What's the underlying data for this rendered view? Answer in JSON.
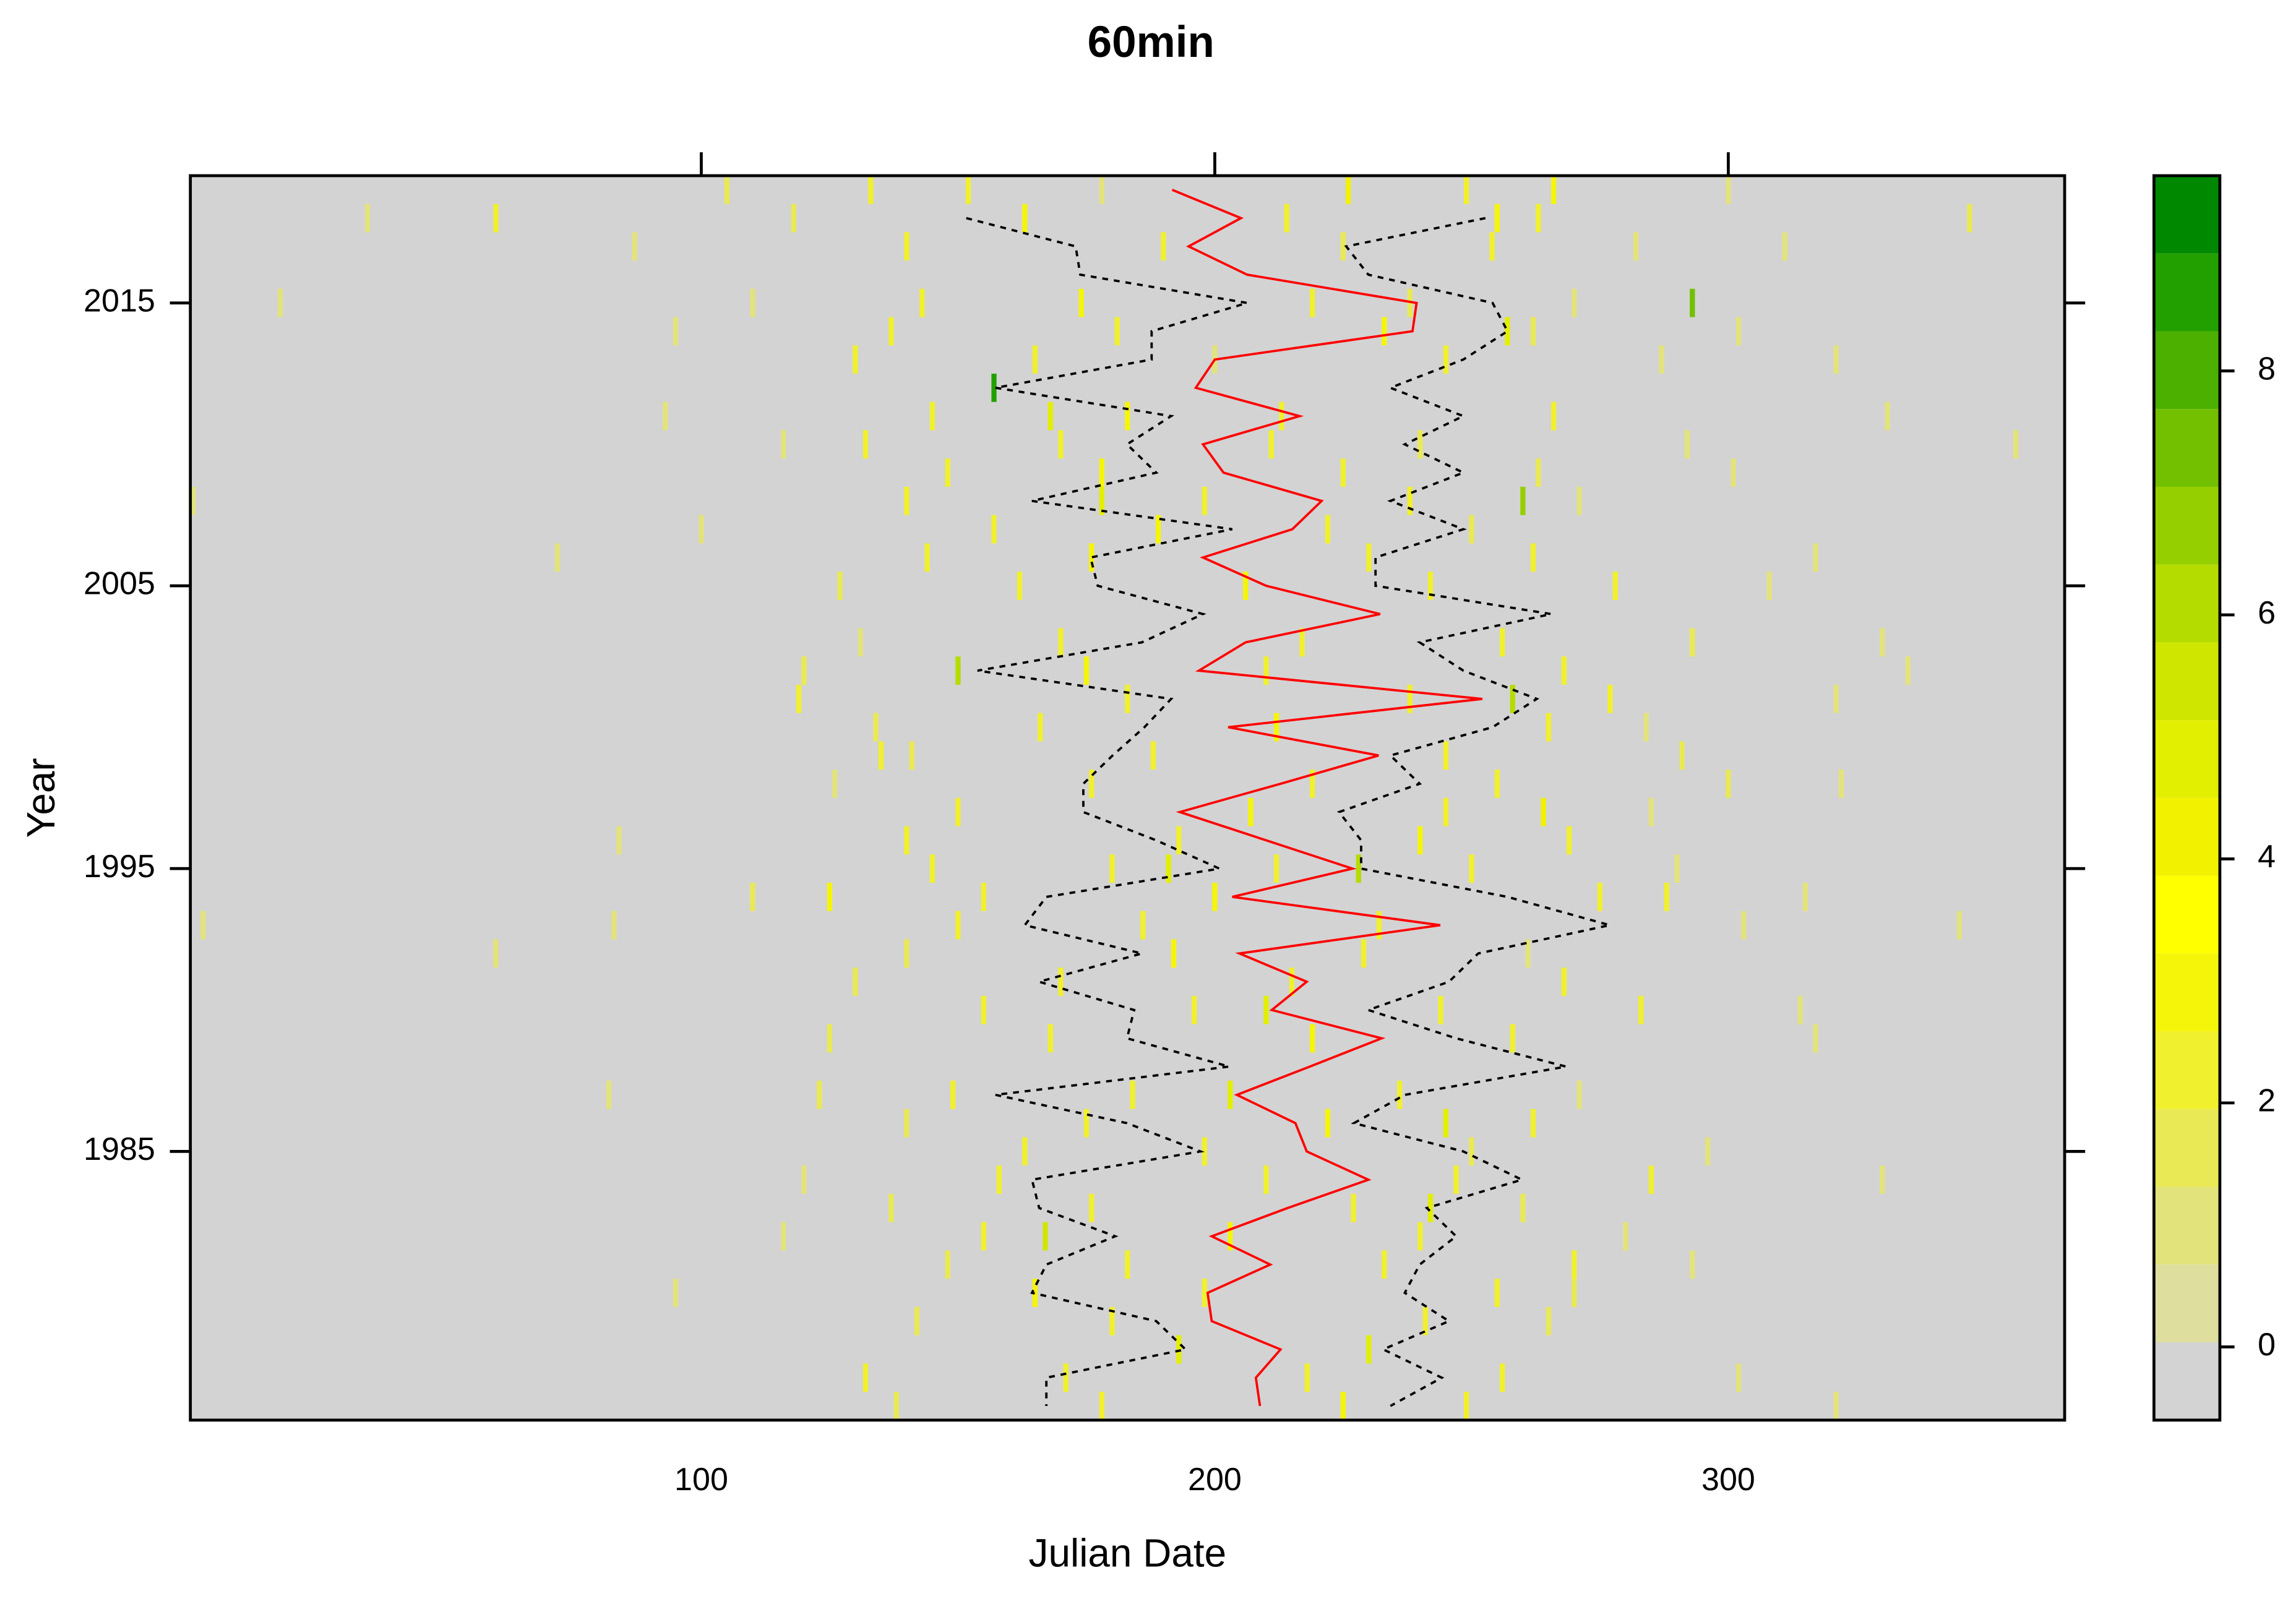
{
  "chart_data": {
    "type": "levelplot",
    "title": "60min",
    "x_label": "Julian Date",
    "y_label": "Year",
    "xlim": [
      0.5,
      365.5
    ],
    "ylim": [
      1975.5,
      2019.5
    ],
    "xticks": [
      100,
      200,
      300
    ],
    "yticks": [
      1985,
      1995,
      2005,
      2015
    ],
    "background": "#d3d3d3",
    "zlim": [
      -0.6,
      9.6
    ],
    "zticks": [
      0,
      2,
      4,
      6,
      8
    ],
    "colors": [
      "#d3d3d3",
      "#dede9f",
      "#e3e37c",
      "#e9e955",
      "#f0f02e",
      "#f5f50a",
      "#ffff00",
      "#f2f200",
      "#e3ef00",
      "#cfe600",
      "#b5dc00",
      "#96cf00",
      "#72c000",
      "#4cb000",
      "#22a000",
      "#008800"
    ],
    "cells": [
      [
        157,
        2012,
        8.5
      ],
      [
        293,
        2015,
        7.5
      ],
      [
        260,
        2008,
        7
      ],
      [
        150,
        2002,
        6
      ],
      [
        258,
        2001,
        6
      ],
      [
        228,
        1995,
        6
      ],
      [
        168,
        2011,
        5
      ],
      [
        191,
        1995,
        5
      ],
      [
        167,
        1982,
        5.5
      ],
      [
        242,
        1983,
        5
      ],
      [
        245,
        1986,
        5
      ],
      [
        203,
        1987,
        5
      ],
      [
        230,
        1978,
        5
      ],
      [
        193,
        1978,
        5
      ],
      [
        210,
        1990,
        4.5
      ],
      [
        257,
        2014,
        5
      ],
      [
        178,
        2008,
        4.5
      ],
      [
        264,
        1997,
        4
      ],
      [
        125,
        1994,
        3
      ],
      [
        135,
        1999,
        2
      ],
      [
        105,
        2019,
        1.5
      ],
      [
        133,
        2019,
        2
      ],
      [
        152,
        2019,
        2.5
      ],
      [
        178,
        2019,
        1
      ],
      [
        226,
        2019,
        4
      ],
      [
        249,
        2019,
        2
      ],
      [
        266,
        2019,
        3
      ],
      [
        300,
        2019,
        1
      ],
      [
        35,
        2018,
        1
      ],
      [
        60,
        2018,
        2
      ],
      [
        118,
        2018,
        1.5
      ],
      [
        163,
        2018,
        3
      ],
      [
        214,
        2018,
        2
      ],
      [
        255,
        2018,
        3
      ],
      [
        263,
        2018,
        2
      ],
      [
        347,
        2018,
        1.5
      ],
      [
        87,
        2017,
        1
      ],
      [
        140,
        2017,
        2
      ],
      [
        190,
        2017,
        2.5
      ],
      [
        225,
        2017,
        1.5
      ],
      [
        254,
        2017,
        2
      ],
      [
        282,
        2017,
        1
      ],
      [
        311,
        2017,
        1
      ],
      [
        18,
        2015,
        1
      ],
      [
        110,
        2015,
        1
      ],
      [
        143,
        2015,
        2
      ],
      [
        174,
        2015,
        3
      ],
      [
        219,
        2015,
        2
      ],
      [
        238,
        2015,
        1.5
      ],
      [
        270,
        2015,
        1
      ],
      [
        95,
        2014,
        1
      ],
      [
        137,
        2014,
        2
      ],
      [
        181,
        2014,
        2.5
      ],
      [
        233,
        2014,
        3
      ],
      [
        262,
        2014,
        1.5
      ],
      [
        302,
        2014,
        1
      ],
      [
        130,
        2013,
        2
      ],
      [
        165,
        2013,
        2
      ],
      [
        200,
        2013,
        1
      ],
      [
        245,
        2013,
        2.5
      ],
      [
        287,
        2013,
        1
      ],
      [
        321,
        2013,
        1
      ],
      [
        93,
        2011,
        1
      ],
      [
        145,
        2011,
        2
      ],
      [
        183,
        2011,
        3
      ],
      [
        213,
        2011,
        2
      ],
      [
        266,
        2011,
        2
      ],
      [
        331,
        2011,
        1
      ],
      [
        116,
        2010,
        1
      ],
      [
        132,
        2010,
        2
      ],
      [
        170,
        2010,
        2
      ],
      [
        211,
        2010,
        2.5
      ],
      [
        240,
        2010,
        1.5
      ],
      [
        292,
        2010,
        1
      ],
      [
        356,
        2010,
        1
      ],
      [
        148,
        2009,
        2
      ],
      [
        178,
        2009,
        3
      ],
      [
        225,
        2009,
        2
      ],
      [
        263,
        2009,
        1.5
      ],
      [
        301,
        2009,
        1
      ],
      [
        1,
        2008,
        1
      ],
      [
        140,
        2008,
        2
      ],
      [
        198,
        2008,
        2.5
      ],
      [
        238,
        2008,
        2
      ],
      [
        271,
        2008,
        1
      ],
      [
        100,
        2007,
        1
      ],
      [
        157,
        2007,
        2
      ],
      [
        189,
        2007,
        3
      ],
      [
        222,
        2007,
        2
      ],
      [
        250,
        2007,
        1.5
      ],
      [
        72,
        2006,
        1
      ],
      [
        144,
        2006,
        2
      ],
      [
        176,
        2006,
        3
      ],
      [
        230,
        2006,
        2.5
      ],
      [
        262,
        2006,
        2
      ],
      [
        317,
        2006,
        1
      ],
      [
        127,
        2005,
        1.5
      ],
      [
        162,
        2005,
        2
      ],
      [
        206,
        2005,
        3
      ],
      [
        242,
        2005,
        2
      ],
      [
        278,
        2005,
        2
      ],
      [
        308,
        2005,
        1
      ],
      [
        131,
        2003,
        1
      ],
      [
        170,
        2003,
        2
      ],
      [
        217,
        2003,
        2
      ],
      [
        256,
        2003,
        2
      ],
      [
        293,
        2003,
        1.5
      ],
      [
        330,
        2003,
        1
      ],
      [
        120,
        2002,
        1.5
      ],
      [
        175,
        2002,
        3
      ],
      [
        210,
        2002,
        2
      ],
      [
        268,
        2002,
        2
      ],
      [
        335,
        2002,
        1
      ],
      [
        119,
        2001,
        2
      ],
      [
        183,
        2001,
        2.5
      ],
      [
        238,
        2001,
        2
      ],
      [
        277,
        2001,
        2
      ],
      [
        321,
        2001,
        1
      ],
      [
        134,
        2000,
        1.5
      ],
      [
        166,
        2000,
        2
      ],
      [
        212,
        2000,
        3
      ],
      [
        265,
        2000,
        2
      ],
      [
        284,
        2000,
        1
      ],
      [
        141,
        1999,
        1.5
      ],
      [
        188,
        1999,
        2
      ],
      [
        245,
        1999,
        2
      ],
      [
        291,
        1999,
        1.5
      ],
      [
        126,
        1998,
        1
      ],
      [
        176,
        1998,
        2.5
      ],
      [
        219,
        1998,
        2
      ],
      [
        255,
        1998,
        2
      ],
      [
        300,
        1998,
        1.5
      ],
      [
        322,
        1998,
        1
      ],
      [
        150,
        1997,
        2
      ],
      [
        207,
        1997,
        3
      ],
      [
        245,
        1997,
        2
      ],
      [
        285,
        1997,
        1
      ],
      [
        84,
        1996,
        1
      ],
      [
        140,
        1996,
        2
      ],
      [
        193,
        1996,
        2
      ],
      [
        240,
        1996,
        3
      ],
      [
        269,
        1996,
        2
      ],
      [
        145,
        1995,
        2
      ],
      [
        180,
        1995,
        2.5
      ],
      [
        212,
        1995,
        2
      ],
      [
        250,
        1995,
        2
      ],
      [
        290,
        1995,
        1
      ],
      [
        110,
        1994,
        1.5
      ],
      [
        155,
        1994,
        2
      ],
      [
        200,
        1994,
        3
      ],
      [
        275,
        1994,
        2
      ],
      [
        288,
        1994,
        2
      ],
      [
        315,
        1994,
        1
      ],
      [
        3,
        1993,
        1
      ],
      [
        83,
        1993,
        1
      ],
      [
        150,
        1993,
        2
      ],
      [
        186,
        1993,
        2
      ],
      [
        232,
        1993,
        2.5
      ],
      [
        303,
        1993,
        1
      ],
      [
        345,
        1993,
        1
      ],
      [
        60,
        1992,
        1
      ],
      [
        140,
        1992,
        1.5
      ],
      [
        192,
        1992,
        3
      ],
      [
        229,
        1992,
        2
      ],
      [
        261,
        1992,
        1
      ],
      [
        130,
        1991,
        1.5
      ],
      [
        170,
        1991,
        2
      ],
      [
        215,
        1991,
        2
      ],
      [
        268,
        1991,
        2
      ],
      [
        155,
        1990,
        2
      ],
      [
        196,
        1990,
        2.5
      ],
      [
        244,
        1990,
        2
      ],
      [
        283,
        1990,
        2
      ],
      [
        314,
        1990,
        1
      ],
      [
        125,
        1989,
        1.5
      ],
      [
        168,
        1989,
        2
      ],
      [
        219,
        1989,
        3
      ],
      [
        258,
        1989,
        2
      ],
      [
        317,
        1989,
        1
      ],
      [
        82,
        1987,
        1
      ],
      [
        123,
        1987,
        1.5
      ],
      [
        149,
        1987,
        2
      ],
      [
        184,
        1987,
        2
      ],
      [
        236,
        1987,
        2
      ],
      [
        271,
        1987,
        1
      ],
      [
        140,
        1986,
        1.5
      ],
      [
        175,
        1986,
        2
      ],
      [
        222,
        1986,
        3
      ],
      [
        262,
        1986,
        2
      ],
      [
        163,
        1985,
        2
      ],
      [
        198,
        1985,
        2
      ],
      [
        250,
        1985,
        1.5
      ],
      [
        296,
        1985,
        1
      ],
      [
        120,
        1984,
        1
      ],
      [
        158,
        1984,
        2
      ],
      [
        210,
        1984,
        2.5
      ],
      [
        247,
        1984,
        2
      ],
      [
        285,
        1984,
        2
      ],
      [
        330,
        1984,
        1
      ],
      [
        137,
        1983,
        1.5
      ],
      [
        176,
        1983,
        2
      ],
      [
        227,
        1983,
        2
      ],
      [
        260,
        1983,
        1.5
      ],
      [
        116,
        1982,
        1
      ],
      [
        155,
        1982,
        2
      ],
      [
        203,
        1982,
        3
      ],
      [
        240,
        1982,
        2
      ],
      [
        280,
        1982,
        1
      ],
      [
        148,
        1981,
        1.5
      ],
      [
        183,
        1981,
        2
      ],
      [
        233,
        1981,
        2
      ],
      [
        270,
        1981,
        2
      ],
      [
        293,
        1981,
        1
      ],
      [
        95,
        1980,
        1
      ],
      [
        165,
        1980,
        3
      ],
      [
        198,
        1980,
        2
      ],
      [
        255,
        1980,
        2
      ],
      [
        270,
        1980,
        1.5
      ],
      [
        142,
        1979,
        1.5
      ],
      [
        180,
        1979,
        2
      ],
      [
        241,
        1979,
        2
      ],
      [
        265,
        1979,
        1.5
      ],
      [
        132,
        1977,
        2
      ],
      [
        171,
        1977,
        2
      ],
      [
        218,
        1977,
        2.5
      ],
      [
        256,
        1977,
        2
      ],
      [
        302,
        1977,
        1
      ],
      [
        138,
        1976,
        1.5
      ],
      [
        178,
        1976,
        2
      ],
      [
        225,
        1976,
        3
      ],
      [
        249,
        1976,
        2
      ],
      [
        321,
        1976,
        1
      ]
    ],
    "years": [
      2019,
      2018,
      2017,
      2016,
      2015,
      2014,
      2013,
      2012,
      2011,
      2010,
      2009,
      2008,
      2007,
      2006,
      2005,
      2004,
      2003,
      2002,
      2001,
      2000,
      1999,
      1998,
      1997,
      1996,
      1995,
      1994,
      1993,
      1992,
      1991,
      1990,
      1989,
      1988,
      1987,
      1986,
      1985,
      1984,
      1983,
      1982,
      1981,
      1980,
      1979,
      1978,
      1977,
      1976
    ],
    "lines": [
      {
        "color": "#000000",
        "dash": true,
        "values": [
          null,
          151.6,
          172.9,
          173.8,
          206.3,
          187.7,
          187.7,
          157.3,
          191.5,
          182.9,
          188.6,
          164.4,
          203.4,
          175.8,
          177.2,
          197.7,
          185.8,
          153.8,
          191.5,
          186.3,
          180.1,
          174.4,
          174.4,
          188.6,
          200.9,
          167.2,
          163,
          185.8,
          165.8,
          184.3,
          182.9,
          202.8,
          157.3,
          182.9,
          197.2,
          164.4,
          165.8,
          180.6,
          167.2,
          164.4,
          188.6,
          194.3,
          167.2,
          167.2
        ]
      },
      {
        "color": "#000000",
        "dash": true,
        "values": [
          null,
          252.7,
          225.6,
          229.9,
          254.1,
          257,
          248.4,
          234.2,
          248.4,
          237,
          248.4,
          234.2,
          248.4,
          231.3,
          231.3,
          265.5,
          239.9,
          248.4,
          262.7,
          254.1,
          234.2,
          239.9,
          224.2,
          228.5,
          228.5,
          257,
          276.9,
          251.3,
          245.6,
          229.9,
          247,
          268.4,
          237,
          227.1,
          248.4,
          259.8,
          241.3,
          247,
          239.9,
          237,
          245.6,
          232.8,
          244.2,
          234.2
        ]
      },
      {
        "color": "#ff0000",
        "dash": false,
        "values": [
          191.7,
          205.1,
          194.9,
          206.3,
          239.3,
          238.5,
          200,
          196.3,
          216.5,
          197.7,
          201.7,
          220.8,
          215.1,
          197.7,
          210,
          232.2,
          206,
          196.9,
          252.1,
          202.6,
          231.9,
          212.8,
          193.2,
          210,
          226.8,
          203.4,
          243.9,
          204.8,
          217.9,
          211.1,
          232.5,
          218.5,
          204.3,
          215.7,
          217.9,
          229.9,
          214.2,
          199.4,
          210.8,
          198.6,
          199.4,
          212.8,
          208,
          208.8
        ]
      }
    ]
  }
}
